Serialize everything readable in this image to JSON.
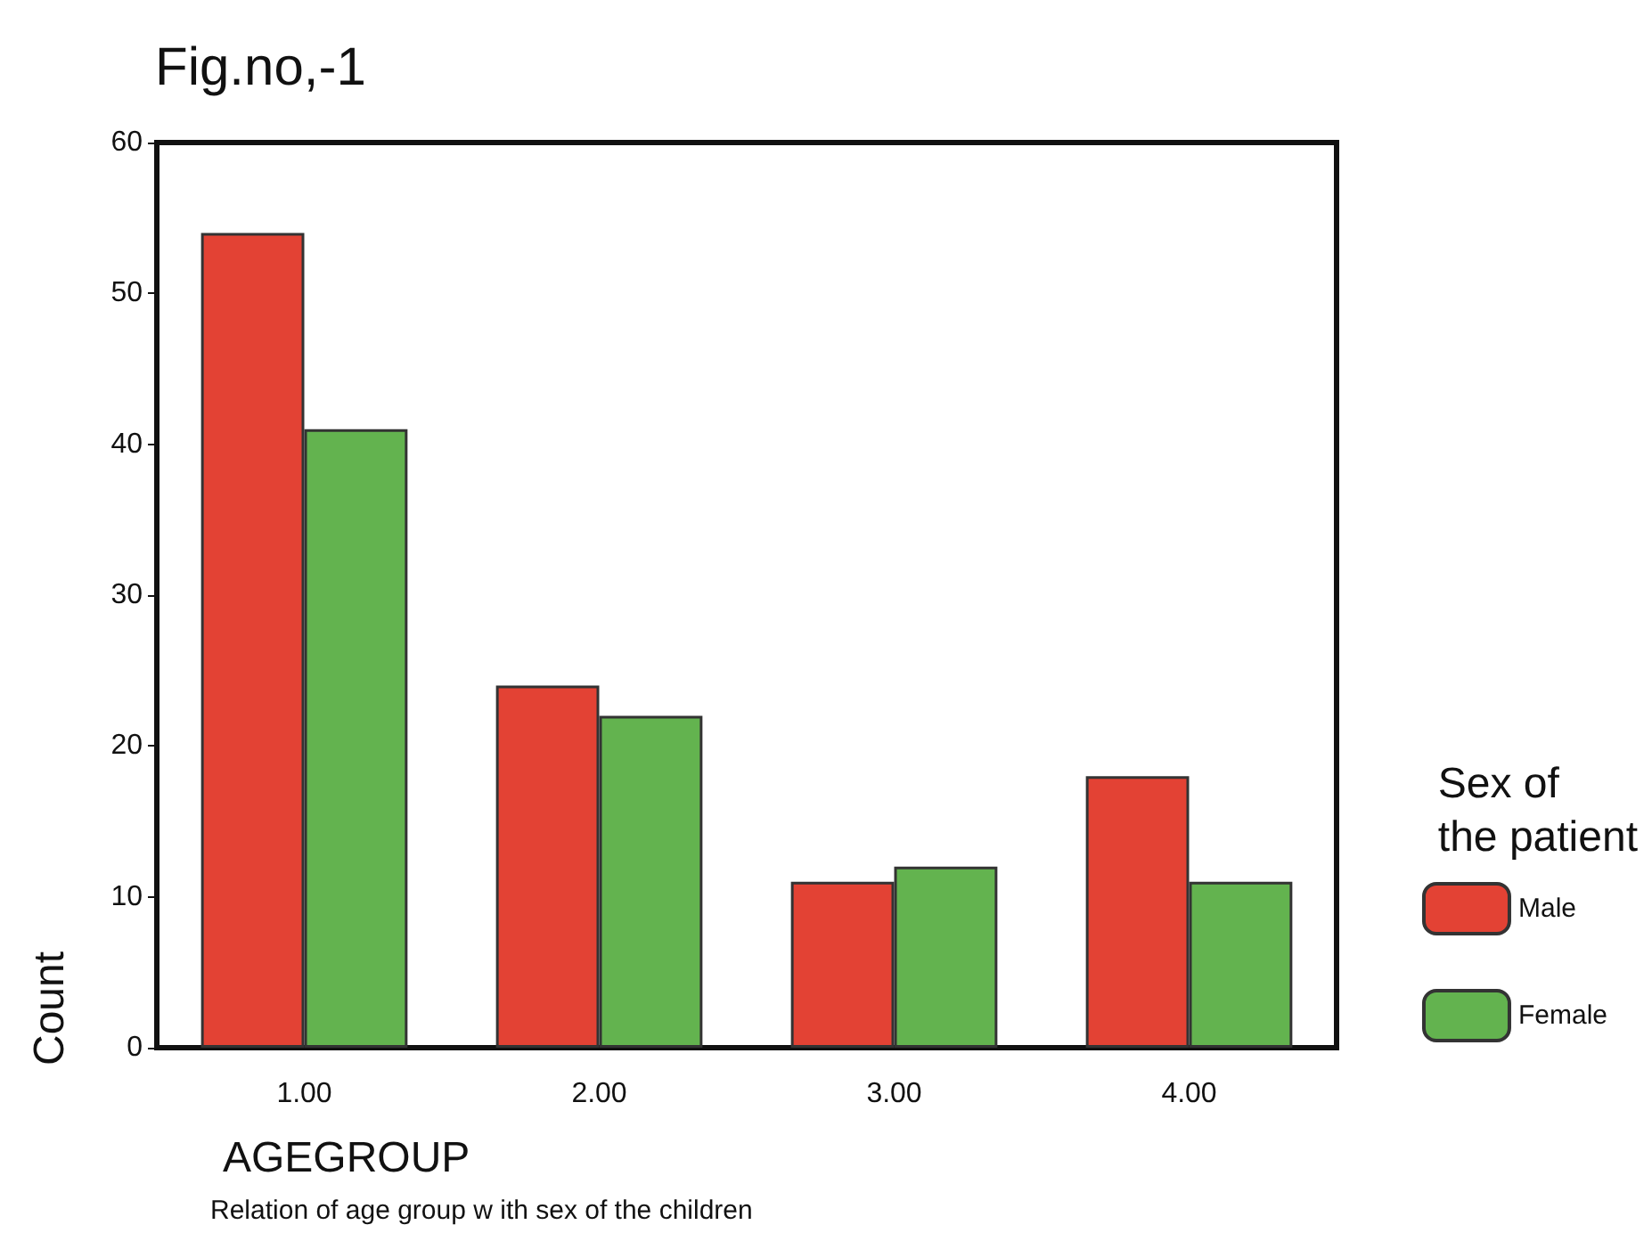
{
  "chart_data": {
    "type": "bar",
    "title": "Fig.no,-1",
    "xlabel": "AGEGROUP",
    "ylabel": "Count",
    "legend_title": "Sex of\nthe patient",
    "annotations": [
      "Relation of age group w ith sex of the children"
    ],
    "categories": [
      "1.00",
      "2.00",
      "3.00",
      "4.00"
    ],
    "series": [
      {
        "name": "Male",
        "color": "#e34234",
        "values": [
          54,
          24,
          11,
          18
        ]
      },
      {
        "name": "Female",
        "color": "#63b34f",
        "values": [
          41,
          22,
          12,
          11
        ]
      }
    ],
    "ylim": [
      0,
      60
    ],
    "yticks": [
      0,
      10,
      20,
      30,
      40,
      50,
      60
    ],
    "grid": false,
    "legend": "right"
  }
}
